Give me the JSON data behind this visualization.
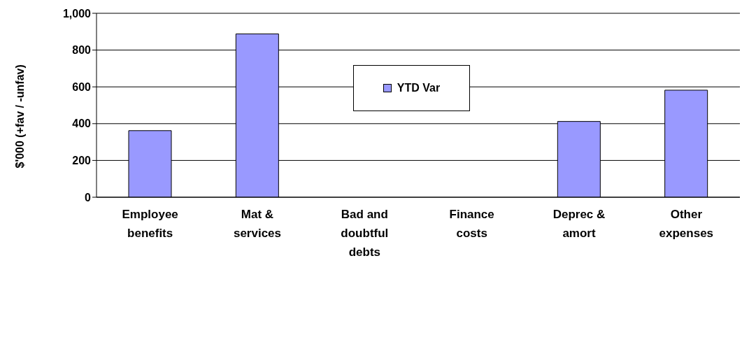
{
  "chart_data": {
    "type": "bar",
    "ylabel": "$'000 (+fav / -unfav)",
    "categories": [
      "Employee benefits",
      "Mat & services",
      "Bad and doubtful debts",
      "Finance costs",
      "Deprec & amort",
      "Other expenses"
    ],
    "series": [
      {
        "name": "YTD Var",
        "color": "#9999ff",
        "values": [
          362,
          888,
          0,
          0,
          412,
          582
        ]
      }
    ],
    "ylim": [
      0,
      1000
    ],
    "yticks": [
      0,
      {
        "value": 200,
        "label": "200"
      },
      400,
      600,
      800,
      {
        "value": 1000,
        "label": "1,000"
      }
    ],
    "grid": "y",
    "legend": "top"
  }
}
